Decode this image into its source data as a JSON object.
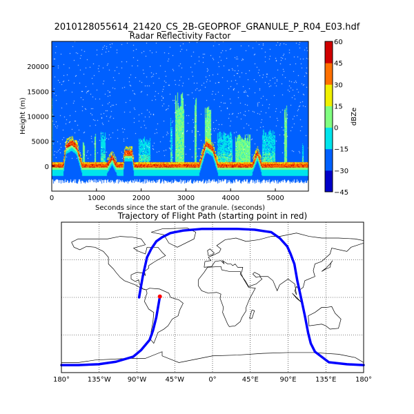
{
  "figure": {
    "suptitle": "2010128055614_21420_CS_2B-GEOPROF_GRANULE_P_R04_E03.hdf"
  },
  "chart_data": [
    {
      "type": "heatmap",
      "title": "Radar Reflectivity Factor",
      "xlabel": "Seconds since the start of the granule. (seconds)",
      "ylabel": "Height (m)",
      "xlim": [
        0,
        5740
      ],
      "ylim": [
        -5000,
        25000
      ],
      "xticks": [
        0,
        1000,
        2000,
        3000,
        4000,
        5000
      ],
      "xtick_labels": [
        "0",
        "1000",
        "2000",
        "3000",
        "4000",
        "5000"
      ],
      "yticks": [
        0,
        5000,
        10000,
        15000,
        20000
      ],
      "ytick_labels": [
        "0",
        "5000",
        "10000",
        "15000",
        "20000"
      ],
      "colorbar": {
        "label": "dBZe",
        "levels": [
          -45,
          -30,
          -15,
          0,
          15,
          30,
          45,
          60
        ],
        "level_labels": [
          "−45",
          "−30",
          "−15",
          "0",
          "15",
          "30",
          "45",
          "60"
        ],
        "colors": [
          "#0000c8",
          "#0060ff",
          "#00e4ec",
          "#80ff80",
          "#f0f000",
          "#ff7000",
          "#d00000"
        ]
      },
      "background_dbz": -25,
      "surface_profile": {
        "seconds": [
          0,
          260,
          320,
          450,
          560,
          680,
          1230,
          1350,
          1460,
          1600,
          1630,
          1800,
          1840,
          3300,
          3450,
          3600,
          3720,
          4480,
          4600,
          4700,
          5740
        ],
        "height_m": [
          0,
          0,
          4000,
          4700,
          3800,
          0,
          0,
          1800,
          0,
          0,
          2600,
          2600,
          0,
          0,
          4500,
          3500,
          0,
          0,
          2700,
          0,
          0
        ]
      },
      "cloud_columns": [
        {
          "start_s": 0,
          "end_s": 20,
          "top_m": 14000,
          "dbz": 5
        },
        {
          "start_s": 700,
          "end_s": 740,
          "top_m": 5000,
          "dbz": 5
        },
        {
          "start_s": 960,
          "end_s": 990,
          "top_m": 7500,
          "dbz": 5
        },
        {
          "start_s": 1100,
          "end_s": 1200,
          "top_m": 7000,
          "dbz": -5
        },
        {
          "start_s": 1950,
          "end_s": 2200,
          "top_m": 6000,
          "dbz": -5
        },
        {
          "start_s": 2650,
          "end_s": 2700,
          "top_m": 10000,
          "dbz": -5
        },
        {
          "start_s": 2760,
          "end_s": 2960,
          "top_m": 15000,
          "dbz": 5
        },
        {
          "start_s": 3200,
          "end_s": 3240,
          "top_m": 14000,
          "dbz": 5
        },
        {
          "start_s": 3420,
          "end_s": 3560,
          "top_m": 12500,
          "dbz": 5
        },
        {
          "start_s": 3700,
          "end_s": 4050,
          "top_m": 7000,
          "dbz": -5
        },
        {
          "start_s": 4100,
          "end_s": 4450,
          "top_m": 6500,
          "dbz": 5
        },
        {
          "start_s": 4700,
          "end_s": 5000,
          "top_m": 7500,
          "dbz": -5
        },
        {
          "start_s": 5200,
          "end_s": 5260,
          "top_m": 12500,
          "dbz": 5
        },
        {
          "start_s": 5600,
          "end_s": 5630,
          "top_m": 5000,
          "dbz": -5
        }
      ]
    },
    {
      "type": "map",
      "title": "Trajectory of Flight Path (starting point in red)",
      "projection": "cylindrical",
      "lon_range": [
        -180,
        180
      ],
      "lat_range": [
        -90,
        90
      ],
      "grid": true,
      "meridians": [
        -180,
        -135,
        -90,
        -45,
        0,
        45,
        90,
        135,
        180
      ],
      "meridian_labels": [
        "180°",
        "135°W",
        "90°W",
        "45°W",
        "0°",
        "45°E",
        "90°E",
        "135°E",
        "180°"
      ],
      "parallels": [
        -45,
        0,
        45
      ],
      "track_color": "#0000ff",
      "start_color": "#ff0000",
      "start_point": {
        "lon": -62.7,
        "lat": 1
      },
      "track_segments": [
        {
          "lon": [
            -62.7,
            -67,
            -71,
            -75,
            -85,
            -94.5,
            -115,
            -135.6,
            -160,
            -180
          ],
          "lat": [
            1,
            -24,
            -40,
            -51,
            -63,
            -71,
            -77,
            -80,
            -81,
            -81
          ]
        },
        {
          "lon": [
            180,
            160,
            138.6,
            122,
            117,
            114,
            110,
            105.7,
            101,
            97.5,
            93,
            89,
            80,
            70,
            50,
            28.8,
            0,
            -12,
            -35,
            -50,
            -60,
            -67,
            -73,
            -78,
            -83,
            -87.5
          ],
          "lat": [
            -81,
            -80,
            -77.6,
            -65,
            -55,
            -43,
            -22,
            -1.6,
            20,
            40,
            52,
            61,
            71,
            78,
            81,
            82,
            82,
            82,
            80,
            77,
            72,
            67,
            58,
            48,
            25.6,
            0
          ]
        }
      ]
    }
  ]
}
